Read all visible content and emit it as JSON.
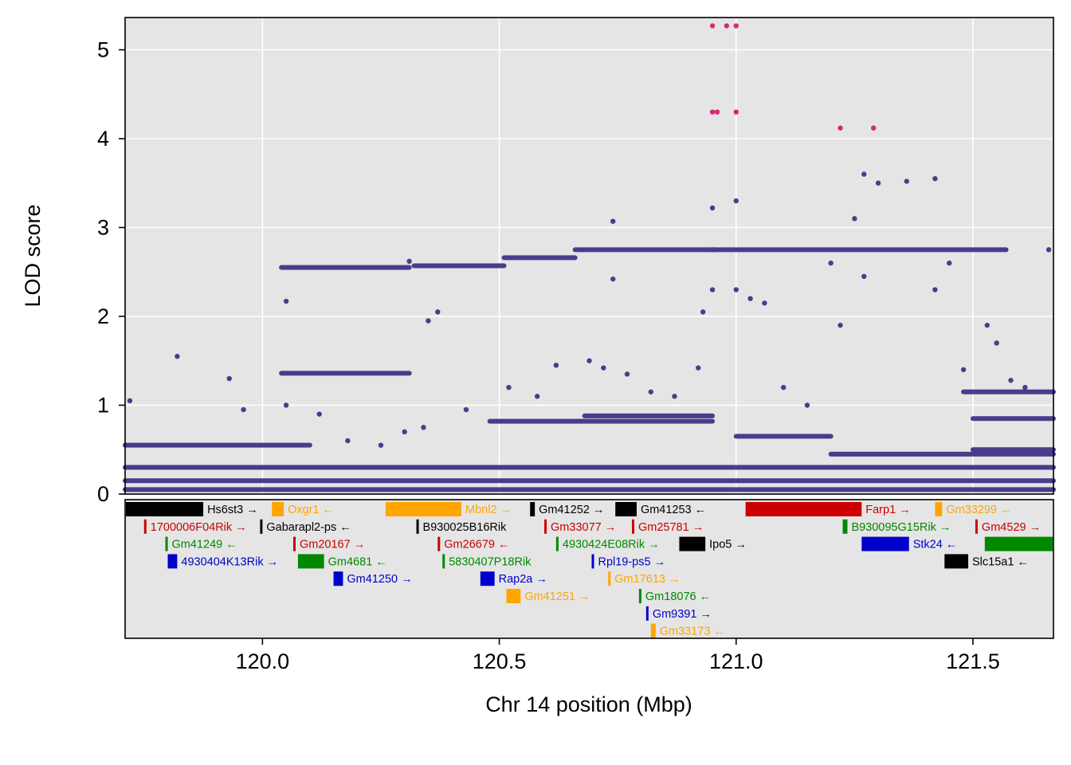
{
  "colors": {
    "panel_bg": "#e5e5e5",
    "grid": "#ffffff",
    "points": "#483d8b",
    "peak_points": "#d9267d",
    "gene_black": "#000000",
    "gene_orange": "#ffa500",
    "gene_red": "#cc0000",
    "gene_green": "#008800",
    "gene_blue": "#0000cc"
  },
  "chart_data": {
    "type": "scatter",
    "xlabel": "Chr 14 position (Mbp)",
    "ylabel": "LOD score",
    "xlim": [
      119.71,
      121.67
    ],
    "ylim": [
      0,
      5.3
    ],
    "x_ticks": [
      120.0,
      120.5,
      121.0,
      121.5
    ],
    "x_tick_labels": [
      "120.0",
      "120.5",
      "121.0",
      "121.5"
    ],
    "y_ticks": [
      0,
      1,
      2,
      3,
      4,
      5
    ],
    "y_tick_labels": [
      "0",
      "1",
      "2",
      "3",
      "4",
      "5"
    ],
    "grid": true,
    "bands": [
      {
        "lod": 2.55,
        "x": [
          120.04,
          120.31
        ]
      },
      {
        "lod": 2.57,
        "x": [
          120.32,
          120.51
        ]
      },
      {
        "lod": 2.66,
        "x": [
          120.51,
          120.66
        ]
      },
      {
        "lod": 2.75,
        "x": [
          120.66,
          121.57
        ]
      },
      {
        "lod": 1.36,
        "x": [
          120.04,
          120.31
        ]
      },
      {
        "lod": 0.82,
        "x": [
          120.48,
          120.95
        ]
      },
      {
        "lod": 0.88,
        "x": [
          120.68,
          120.95
        ]
      },
      {
        "lod": 0.65,
        "x": [
          121.0,
          121.2
        ]
      },
      {
        "lod": 0.45,
        "x": [
          121.2,
          121.67
        ]
      },
      {
        "lod": 1.15,
        "x": [
          121.48,
          121.67
        ]
      },
      {
        "lod": 0.55,
        "x": [
          119.71,
          120.1
        ]
      },
      {
        "lod": 0.3,
        "x": [
          119.71,
          121.67
        ]
      },
      {
        "lod": 0.15,
        "x": [
          119.71,
          121.67
        ]
      },
      {
        "lod": 0.05,
        "x": [
          119.71,
          121.67
        ]
      },
      {
        "lod": 0.5,
        "x": [
          121.5,
          121.67
        ]
      },
      {
        "lod": 0.85,
        "x": [
          121.5,
          121.67
        ]
      }
    ],
    "scatter_points": [
      [
        119.72,
        1.05
      ],
      [
        119.82,
        1.55
      ],
      [
        119.93,
        1.3
      ],
      [
        119.96,
        0.95
      ],
      [
        120.05,
        2.17
      ],
      [
        120.05,
        1.0
      ],
      [
        120.12,
        0.9
      ],
      [
        120.18,
        0.6
      ],
      [
        120.25,
        0.55
      ],
      [
        120.3,
        0.7
      ],
      [
        120.34,
        0.75
      ],
      [
        120.35,
        1.95
      ],
      [
        120.37,
        2.05
      ],
      [
        120.31,
        2.62
      ],
      [
        120.43,
        0.95
      ],
      [
        120.52,
        1.2
      ],
      [
        120.58,
        1.1
      ],
      [
        120.62,
        1.45
      ],
      [
        120.69,
        1.5
      ],
      [
        120.72,
        1.42
      ],
      [
        120.74,
        2.42
      ],
      [
        120.74,
        3.07
      ],
      [
        120.77,
        1.35
      ],
      [
        120.82,
        1.15
      ],
      [
        120.87,
        1.1
      ],
      [
        120.92,
        1.42
      ],
      [
        120.93,
        2.05
      ],
      [
        120.95,
        2.75
      ],
      [
        120.95,
        3.22
      ],
      [
        120.95,
        2.3
      ],
      [
        121.0,
        2.3
      ],
      [
        121.0,
        3.3
      ],
      [
        121.03,
        2.2
      ],
      [
        121.06,
        2.15
      ],
      [
        121.1,
        1.2
      ],
      [
        121.15,
        1.0
      ],
      [
        121.2,
        2.6
      ],
      [
        121.22,
        1.9
      ],
      [
        121.25,
        3.1
      ],
      [
        121.27,
        3.6
      ],
      [
        121.27,
        2.45
      ],
      [
        121.3,
        3.5
      ],
      [
        121.36,
        3.52
      ],
      [
        121.42,
        3.55
      ],
      [
        121.42,
        2.3
      ],
      [
        121.45,
        2.6
      ],
      [
        121.48,
        1.4
      ],
      [
        121.53,
        1.9
      ],
      [
        121.55,
        1.7
      ],
      [
        121.58,
        1.28
      ],
      [
        121.61,
        1.2
      ],
      [
        121.66,
        2.75
      ]
    ],
    "peak_points": [
      [
        120.95,
        5.27
      ],
      [
        120.98,
        5.27
      ],
      [
        121.0,
        5.27
      ],
      [
        120.95,
        4.3
      ],
      [
        120.96,
        4.3
      ],
      [
        121.0,
        4.3
      ],
      [
        121.22,
        4.12
      ],
      [
        121.29,
        4.12
      ]
    ],
    "genes": [
      {
        "label": "Hs6st3 →",
        "start": 119.71,
        "end": 119.875,
        "row": 0,
        "color": "#000000"
      },
      {
        "label": "Oxgr1 ←",
        "start": 120.02,
        "end": 120.045,
        "row": 0,
        "color": "#ffa500"
      },
      {
        "label": "Mbnl2 →",
        "start": 120.26,
        "end": 120.42,
        "row": 0,
        "color": "#ffa500"
      },
      {
        "label": "Gm41252 →",
        "start": 120.565,
        "end": 120.575,
        "row": 0,
        "color": "#000000"
      },
      {
        "label": "Gm41253 ←",
        "start": 120.745,
        "end": 120.79,
        "row": 0,
        "color": "#000000"
      },
      {
        "label": "Farp1 →",
        "start": 121.02,
        "end": 121.265,
        "row": 0,
        "color": "#cc0000"
      },
      {
        "label": "Gm33299 ←",
        "start": 121.42,
        "end": 121.435,
        "row": 0,
        "color": "#ffa500"
      },
      {
        "label": "1700006F04Rik →",
        "start": 119.75,
        "end": 119.755,
        "row": 1,
        "color": "#cc0000"
      },
      {
        "label": "Gabarapl2-ps ←",
        "start": 119.995,
        "end": 120.0,
        "row": 1,
        "color": "#000000"
      },
      {
        "label": "B930025B16Rik",
        "start": 120.325,
        "end": 120.33,
        "row": 1,
        "color": "#000000"
      },
      {
        "label": "Gm33077 →",
        "start": 120.595,
        "end": 120.6,
        "row": 1,
        "color": "#cc0000"
      },
      {
        "label": "Gm25781 →",
        "start": 120.78,
        "end": 120.785,
        "row": 1,
        "color": "#cc0000"
      },
      {
        "label": "B930095G15Rik →",
        "start": 121.225,
        "end": 121.235,
        "row": 1,
        "color": "#008800"
      },
      {
        "label": "Gm4529 →",
        "start": 121.505,
        "end": 121.51,
        "row": 1,
        "color": "#cc0000"
      },
      {
        "label": "Gm41249 ←",
        "start": 119.795,
        "end": 119.8,
        "row": 2,
        "color": "#008800"
      },
      {
        "label": "Gm20167 →",
        "start": 120.065,
        "end": 120.07,
        "row": 2,
        "color": "#cc0000"
      },
      {
        "label": "Gm26679 ←",
        "start": 120.37,
        "end": 120.375,
        "row": 2,
        "color": "#cc0000"
      },
      {
        "label": "4930424E08Rik →",
        "start": 120.62,
        "end": 120.625,
        "row": 2,
        "color": "#008800"
      },
      {
        "label": "Ipo5 →",
        "start": 120.88,
        "end": 120.935,
        "row": 2,
        "color": "#000000"
      },
      {
        "label": "Stk24 ←",
        "start": 121.265,
        "end": 121.365,
        "row": 2,
        "color": "#0000cc"
      },
      {
        "label": "",
        "start": 121.525,
        "end": 121.67,
        "row": 2,
        "color": "#008800"
      },
      {
        "label": "4930404K13Rik →",
        "start": 119.8,
        "end": 119.82,
        "row": 3,
        "color": "#0000cc"
      },
      {
        "label": "Gm4681 ←",
        "start": 120.075,
        "end": 120.13,
        "row": 3,
        "color": "#008800"
      },
      {
        "label": "5830407P18Rik",
        "start": 120.38,
        "end": 120.385,
        "row": 3,
        "color": "#008800"
      },
      {
        "label": "Rpl19-ps5 →",
        "start": 120.695,
        "end": 120.7,
        "row": 3,
        "color": "#0000cc"
      },
      {
        "label": "Slc15a1 ←",
        "start": 121.44,
        "end": 121.49,
        "row": 3,
        "color": "#000000"
      },
      {
        "label": "Gm41250 →",
        "start": 120.15,
        "end": 120.17,
        "row": 4,
        "color": "#0000cc"
      },
      {
        "label": "Rap2a →",
        "start": 120.46,
        "end": 120.49,
        "row": 4,
        "color": "#0000cc"
      },
      {
        "label": "Gm17613 →",
        "start": 120.73,
        "end": 120.735,
        "row": 4,
        "color": "#ffa500"
      },
      {
        "label": "Gm41251 →",
        "start": 120.515,
        "end": 120.545,
        "row": 5,
        "color": "#ffa500"
      },
      {
        "label": "Gm18076 ←",
        "start": 120.795,
        "end": 120.8,
        "row": 5,
        "color": "#008800"
      },
      {
        "label": "Gm9391 →",
        "start": 120.81,
        "end": 120.815,
        "row": 6,
        "color": "#0000cc"
      },
      {
        "label": "Gm33173 ←",
        "start": 120.82,
        "end": 120.83,
        "row": 7,
        "color": "#ffa500"
      }
    ]
  }
}
